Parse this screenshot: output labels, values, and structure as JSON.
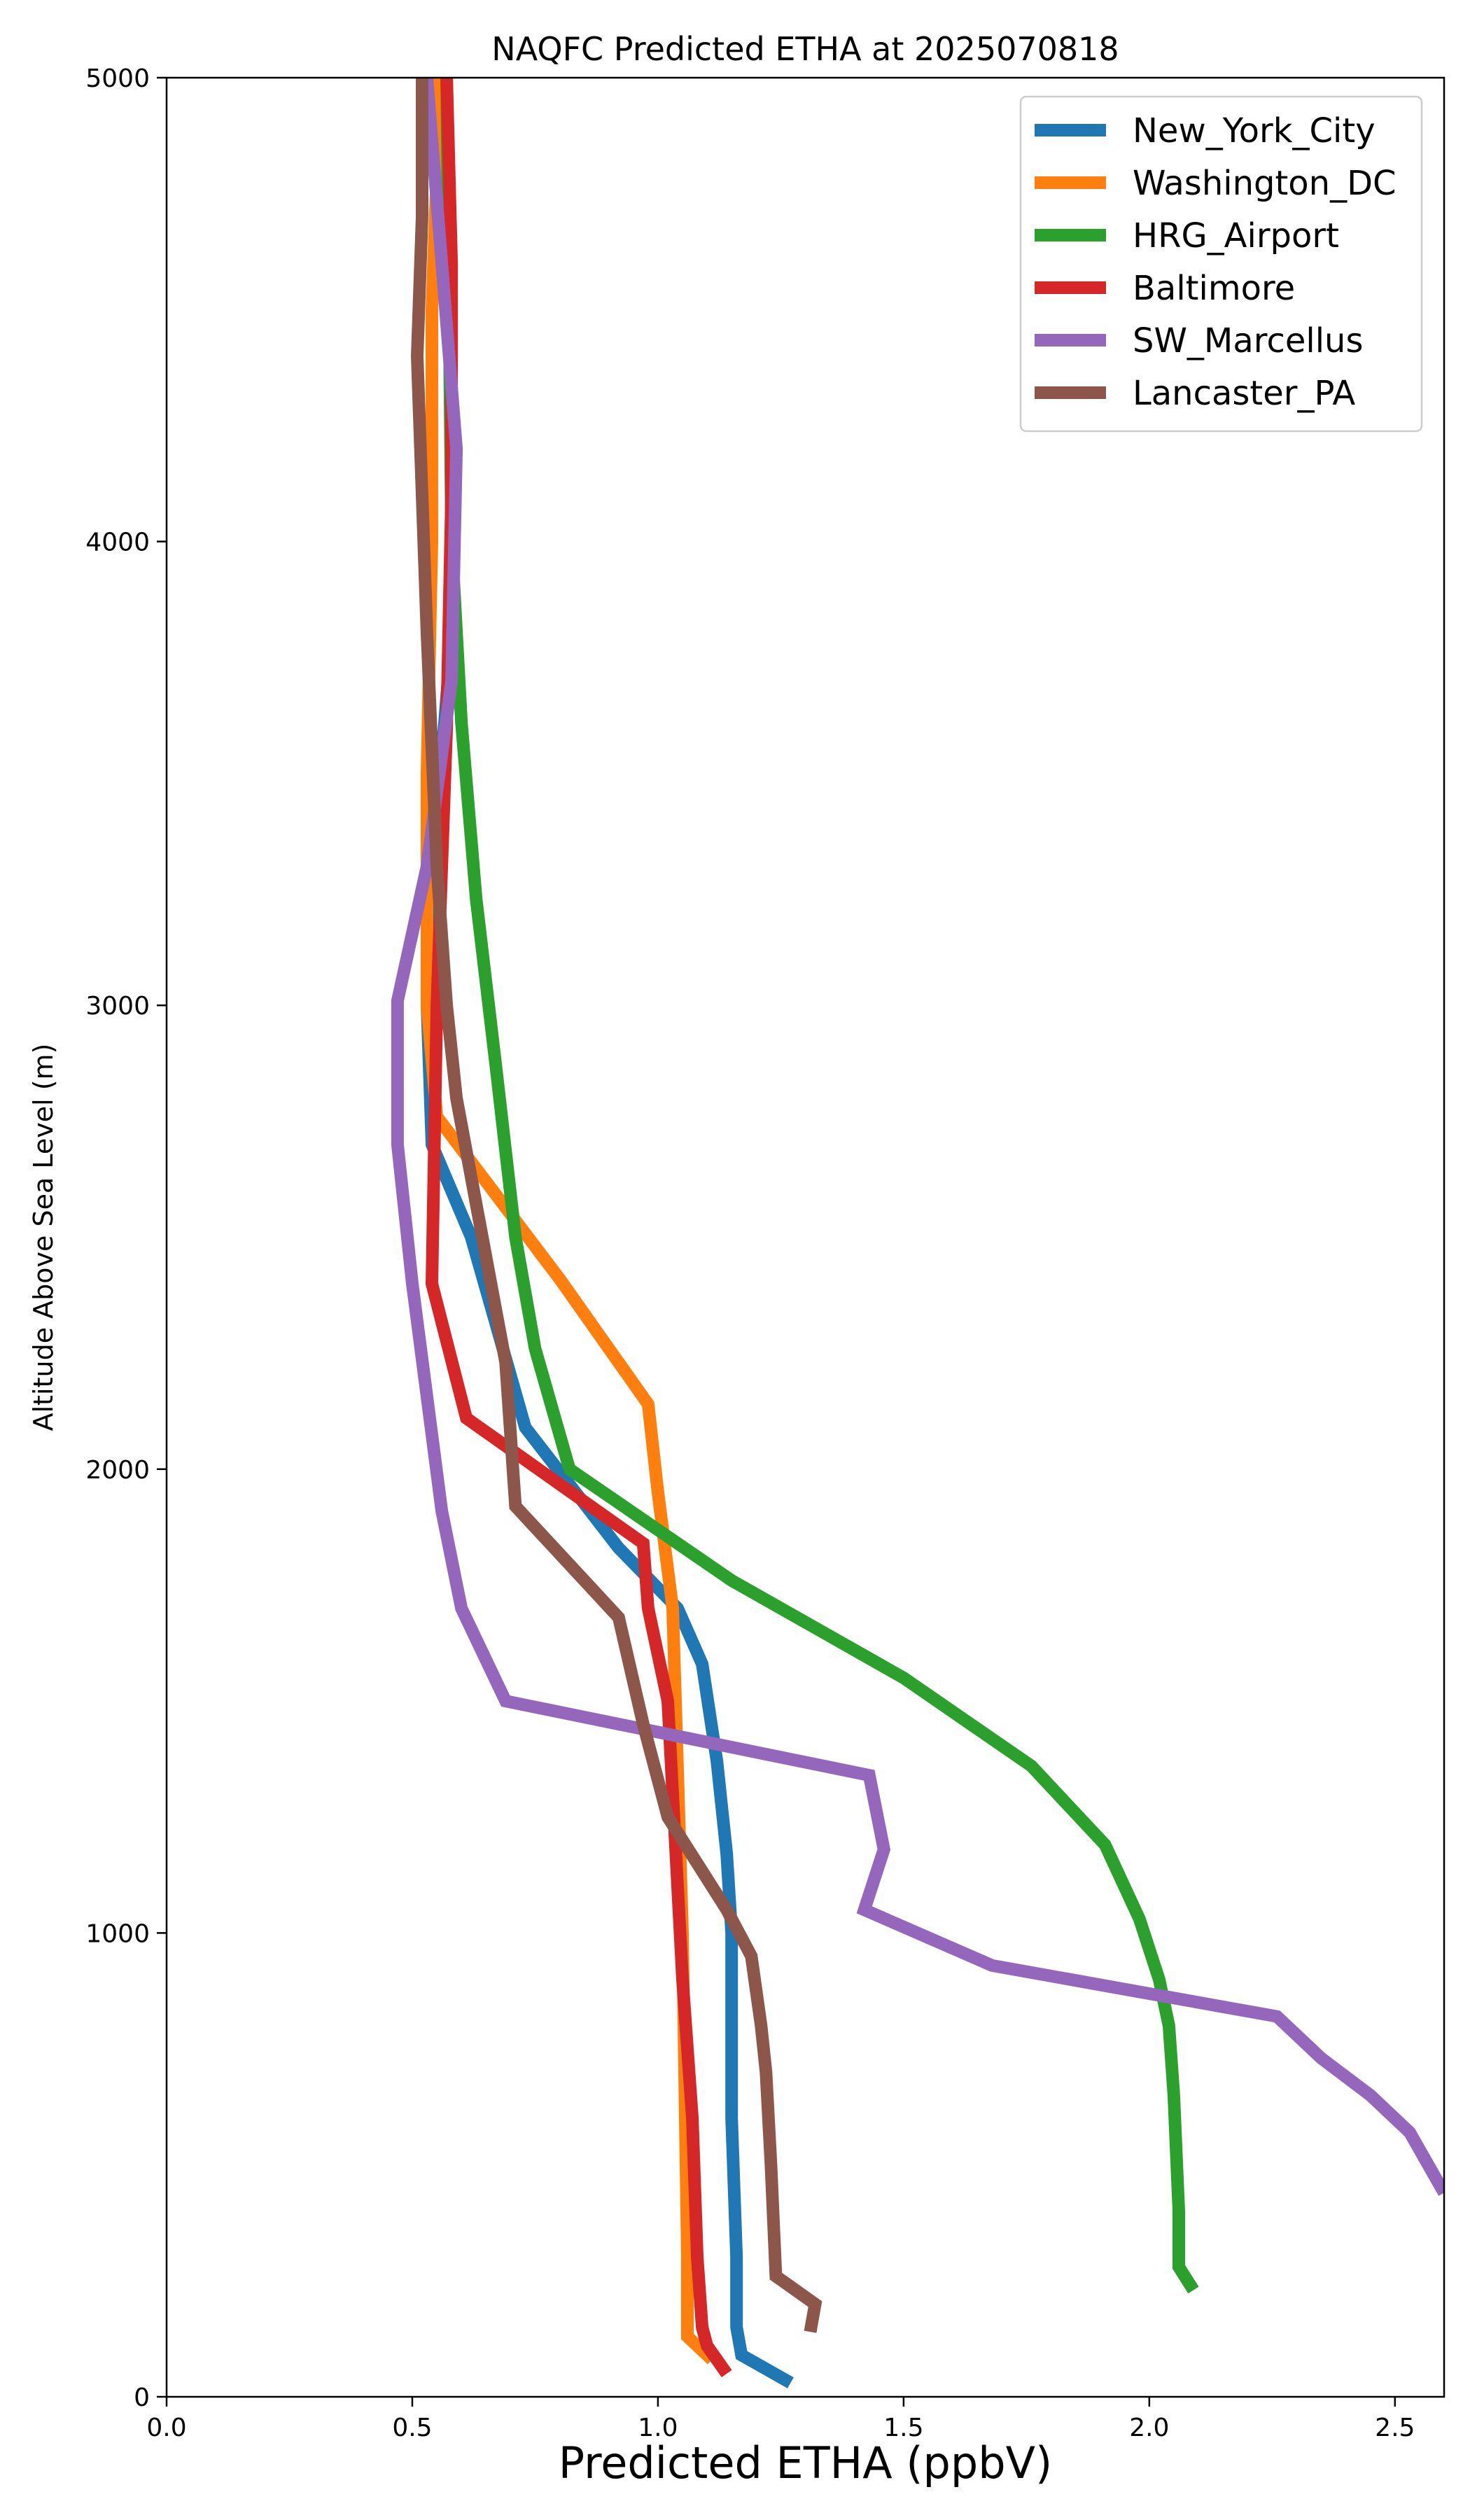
{
  "chart_data": {
    "type": "line",
    "title": "NAQFC Predicted ETHA at 2025070818",
    "xlabel": "Predicted ETHA (ppbV)",
    "ylabel": "Altitude Above Sea Level (m)",
    "xlim": [
      0,
      2.6
    ],
    "ylim": [
      0,
      5000
    ],
    "xticks": [
      0,
      0.5,
      1,
      1.5,
      2,
      2.5
    ],
    "xtick_labels": [
      "0.0",
      "0.5",
      "1.0",
      "1.5",
      "2.0",
      "2.5"
    ],
    "yticks": [
      0,
      1000,
      2000,
      3000,
      4000,
      5000
    ],
    "ytick_labels": [
      "0",
      "1000",
      "2000",
      "3000",
      "4000",
      "5000"
    ],
    "grid": false,
    "legend_position": "top-right",
    "series": [
      {
        "name": "New_York_City",
        "color": "#1f77b4",
        "x": [
          1.27,
          1.17,
          1.16,
          1.16,
          1.15,
          1.15,
          1.14,
          1.12,
          1.09,
          1.04,
          0.92,
          0.73,
          0.62,
          0.54,
          0.53,
          0.55,
          0.58,
          0.58,
          0.57,
          0.56
        ],
        "y": [
          30,
          90,
          150,
          300,
          600,
          1000,
          1170,
          1370,
          1580,
          1700,
          1830,
          2090,
          2500,
          2700,
          3000,
          3400,
          3800,
          4300,
          4700,
          5000
        ]
      },
      {
        "name": "Washington_DC",
        "color": "#ff7f0e",
        "x": [
          1.11,
          1.06,
          1.06,
          1.05,
          1.03,
          1.0,
          0.98,
          0.8,
          0.55,
          0.53,
          0.53,
          0.54,
          0.54,
          0.55,
          0.55
        ],
        "y": [
          80,
          130,
          300,
          1000,
          1700,
          1950,
          2140,
          2410,
          2760,
          3000,
          3500,
          4000,
          4500,
          4800,
          5000
        ]
      },
      {
        "name": "HRG_Airport",
        "color": "#2ca02c",
        "x": [
          2.09,
          2.06,
          2.06,
          2.05,
          2.04,
          2.02,
          1.98,
          1.91,
          1.76,
          1.5,
          1.15,
          0.82,
          0.75,
          0.71,
          0.67,
          0.63,
          0.6,
          0.58,
          0.57
        ],
        "y": [
          230,
          280,
          400,
          650,
          800,
          900,
          1030,
          1190,
          1360,
          1550,
          1760,
          2000,
          2260,
          2500,
          2870,
          3230,
          3610,
          4000,
          5000
        ]
      },
      {
        "name": "Baltimore",
        "color": "#d62728",
        "x": [
          1.14,
          1.1,
          1.09,
          1.08,
          1.07,
          1.05,
          1.02,
          0.98,
          0.97,
          0.61,
          0.54,
          0.55,
          0.57,
          0.58,
          0.58,
          0.57
        ],
        "y": [
          50,
          110,
          150,
          300,
          600,
          900,
          1500,
          1700,
          1840,
          2110,
          2400,
          3000,
          3600,
          4100,
          4600,
          5000
        ]
      },
      {
        "name": "SW_Marcellus",
        "color": "#9467bd",
        "x": [
          2.6,
          2.53,
          2.45,
          2.35,
          2.26,
          1.68,
          1.42,
          1.46,
          1.43,
          0.69,
          0.6,
          0.56,
          0.5,
          0.47,
          0.47,
          0.53,
          0.58,
          0.59,
          0.56,
          0.53
        ],
        "y": [
          440,
          570,
          650,
          730,
          820,
          930,
          1050,
          1180,
          1340,
          1500,
          1700,
          1910,
          2400,
          2700,
          3010,
          3300,
          3700,
          4200,
          4600,
          5000
        ]
      },
      {
        "name": "Lancaster_PA",
        "color": "#8c564b",
        "x": [
          1.31,
          1.32,
          1.24,
          1.23,
          1.22,
          1.21,
          1.19,
          1.14,
          1.02,
          0.97,
          0.92,
          0.71,
          0.69,
          0.59,
          0.57,
          0.55,
          0.53,
          0.51,
          0.52,
          0.52
        ],
        "y": [
          140,
          200,
          260,
          500,
          700,
          800,
          950,
          1050,
          1250,
          1450,
          1680,
          1920,
          2230,
          2800,
          3000,
          3300,
          3800,
          4400,
          4700,
          5000
        ]
      }
    ]
  }
}
